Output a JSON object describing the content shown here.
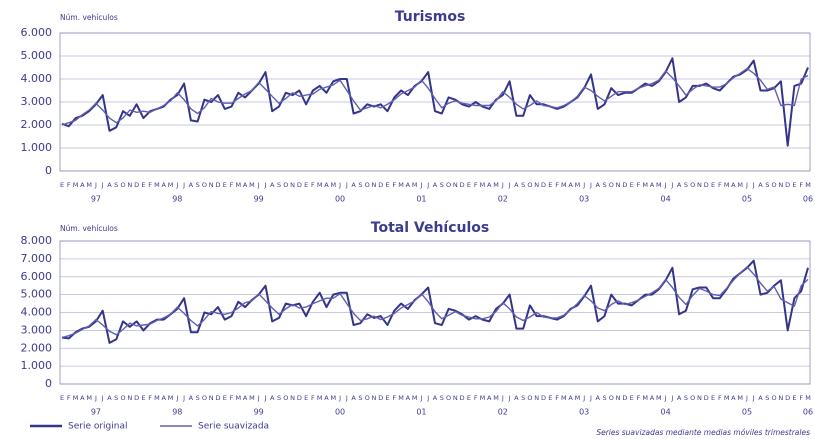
{
  "chart_data": [
    {
      "type": "line",
      "title": "Turismos",
      "y_label": "Núm. vehículos",
      "categories": [
        "E",
        "F",
        "M",
        "A",
        "M",
        "J",
        "J",
        "A",
        "S",
        "O",
        "N",
        "D",
        "E",
        "F",
        "M",
        "A",
        "M",
        "J",
        "J",
        "A",
        "S",
        "O",
        "N",
        "D",
        "E",
        "F",
        "M",
        "A",
        "M",
        "J",
        "J",
        "A",
        "S",
        "O",
        "N",
        "D",
        "E",
        "F",
        "M",
        "A",
        "M",
        "J",
        "J",
        "A",
        "S",
        "O",
        "N",
        "D",
        "E",
        "F",
        "M",
        "A",
        "M",
        "J",
        "J",
        "A",
        "S",
        "O",
        "N",
        "D",
        "E",
        "F",
        "M",
        "A",
        "M",
        "J",
        "J",
        "A",
        "S",
        "O",
        "N",
        "D",
        "E",
        "F",
        "M",
        "A",
        "M",
        "J",
        "J",
        "A",
        "S",
        "O",
        "N",
        "D",
        "E",
        "F",
        "M",
        "A",
        "M",
        "J",
        "J",
        "A",
        "S",
        "O",
        "N",
        "D",
        "E",
        "F",
        "M",
        "A",
        "M",
        "J",
        "J",
        "A",
        "S",
        "O",
        "N",
        "D",
        "E",
        "F",
        "M"
      ],
      "years": [
        "97",
        "98",
        "99",
        "00",
        "01",
        "02",
        "03",
        "04",
        "05",
        "06"
      ],
      "ylim": [
        0,
        6000
      ],
      "yticks": [
        0,
        {
          "value": 1000,
          "label": "1.000"
        },
        {
          "value": 2000,
          "label": "2.000"
        },
        {
          "value": 3000,
          "label": "3.000"
        },
        {
          "value": 4000,
          "label": "4.000"
        },
        {
          "value": 5000,
          "label": "5.000"
        },
        {
          "value": 6000,
          "label": "6.000"
        }
      ],
      "grid": true,
      "series": [
        {
          "name": "Serie original",
          "color": "#34348a",
          "values": [
            2050,
            1950,
            2300,
            2400,
            2600,
            2900,
            3300,
            1750,
            1900,
            2600,
            2400,
            2900,
            2300,
            2600,
            2700,
            2800,
            3100,
            3300,
            3800,
            2200,
            2150,
            3100,
            3000,
            3300,
            2700,
            2800,
            3400,
            3200,
            3500,
            3800,
            4300,
            2600,
            2800,
            3400,
            3300,
            3500,
            2900,
            3500,
            3700,
            3400,
            3900,
            4000,
            4000,
            2500,
            2600,
            2900,
            2800,
            2900,
            2600,
            3200,
            3500,
            3300,
            3700,
            3900,
            4300,
            2600,
            2500,
            3200,
            3100,
            2900,
            2800,
            3000,
            2800,
            2700,
            3100,
            3300,
            3900,
            2400,
            2400,
            3300,
            2900,
            2900,
            2800,
            2700,
            2800,
            3000,
            3200,
            3600,
            4200,
            2700,
            2900,
            3600,
            3300,
            3400,
            3400,
            3600,
            3800,
            3700,
            3900,
            4300,
            4900,
            3000,
            3200,
            3700,
            3700,
            3800,
            3600,
            3500,
            3800,
            4100,
            4200,
            4400,
            4800,
            3500,
            3500,
            3600,
            3900,
            1100,
            3700,
            3800,
            4500
          ]
        },
        {
          "name": "Serie suavizada",
          "color": "#6060b0",
          "values": [
            2000,
            2100,
            2200,
            2450,
            2650,
            2950,
            2650,
            2300,
            2100,
            2300,
            2650,
            2550,
            2600,
            2550,
            2700,
            2850,
            3050,
            3400,
            3100,
            2700,
            2500,
            2750,
            3150,
            3000,
            2950,
            2950,
            3150,
            3350,
            3500,
            3850,
            3550,
            3250,
            2950,
            3150,
            3400,
            3250,
            3300,
            3350,
            3550,
            3650,
            3750,
            3950,
            3500,
            3050,
            2650,
            2750,
            2850,
            2750,
            2900,
            3100,
            3350,
            3500,
            3650,
            3950,
            3600,
            3150,
            2750,
            2950,
            3050,
            2950,
            2900,
            2850,
            2850,
            2850,
            3050,
            3450,
            3200,
            2900,
            2700,
            2850,
            3050,
            2850,
            2800,
            2750,
            2850,
            3000,
            3250,
            3650,
            3500,
            3250,
            3050,
            3250,
            3450,
            3450,
            3450,
            3600,
            3700,
            3800,
            3950,
            4350,
            4050,
            3700,
            3300,
            3550,
            3750,
            3700,
            3650,
            3650,
            3800,
            4050,
            4250,
            4450,
            4250,
            3950,
            3550,
            3650,
            2850,
            2900,
            2850,
            4000,
            4150
          ]
        }
      ]
    },
    {
      "type": "line",
      "title": "Total Vehículos",
      "y_label": "Núm. vehículos",
      "categories": [
        "E",
        "F",
        "M",
        "A",
        "M",
        "J",
        "J",
        "A",
        "S",
        "O",
        "N",
        "D",
        "E",
        "F",
        "M",
        "A",
        "M",
        "J",
        "J",
        "A",
        "S",
        "O",
        "N",
        "D",
        "E",
        "F",
        "M",
        "A",
        "M",
        "J",
        "J",
        "A",
        "S",
        "O",
        "N",
        "D",
        "E",
        "F",
        "M",
        "A",
        "M",
        "J",
        "J",
        "A",
        "S",
        "O",
        "N",
        "D",
        "E",
        "F",
        "M",
        "A",
        "M",
        "J",
        "J",
        "A",
        "S",
        "O",
        "N",
        "D",
        "E",
        "F",
        "M",
        "A",
        "M",
        "J",
        "J",
        "A",
        "S",
        "O",
        "N",
        "D",
        "E",
        "F",
        "M",
        "A",
        "M",
        "J",
        "J",
        "A",
        "S",
        "O",
        "N",
        "D",
        "E",
        "F",
        "M",
        "A",
        "M",
        "J",
        "J",
        "A",
        "S",
        "O",
        "N",
        "D",
        "E",
        "F",
        "M",
        "A",
        "M",
        "J",
        "J",
        "A",
        "S",
        "O",
        "N",
        "D",
        "E",
        "F",
        "M"
      ],
      "years": [
        "97",
        "98",
        "99",
        "00",
        "01",
        "02",
        "03",
        "04",
        "05",
        "06"
      ],
      "ylim": [
        0,
        8000
      ],
      "yticks": [
        0,
        {
          "value": 1000,
          "label": "1.000"
        },
        {
          "value": 2000,
          "label": "2.000"
        },
        {
          "value": 3000,
          "label": "3.000"
        },
        {
          "value": 4000,
          "label": "4.000"
        },
        {
          "value": 5000,
          "label": "5.000"
        },
        {
          "value": 6000,
          "label": "6.000"
        },
        {
          "value": 7000,
          "label": "7.000"
        },
        {
          "value": 8000,
          "label": "8.000"
        }
      ],
      "grid": true,
      "note": "Series suavizadas mediante medias móviles trimestrales",
      "series": [
        {
          "name": "Serie original",
          "color": "#34348a",
          "values": [
            2600,
            2550,
            2900,
            3100,
            3200,
            3500,
            4100,
            2300,
            2500,
            3500,
            3200,
            3500,
            3000,
            3400,
            3600,
            3600,
            3900,
            4200,
            4800,
            2900,
            2900,
            4000,
            3900,
            4300,
            3600,
            3800,
            4600,
            4300,
            4700,
            5000,
            5500,
            3500,
            3700,
            4500,
            4400,
            4500,
            3800,
            4600,
            5100,
            4300,
            5000,
            5100,
            5100,
            3300,
            3400,
            3900,
            3700,
            3800,
            3300,
            4100,
            4500,
            4200,
            4700,
            5000,
            5400,
            3400,
            3300,
            4200,
            4100,
            3900,
            3600,
            3800,
            3600,
            3500,
            4200,
            4500,
            5000,
            3100,
            3100,
            4400,
            3800,
            3800,
            3700,
            3600,
            3800,
            4200,
            4400,
            4900,
            5500,
            3500,
            3800,
            5000,
            4500,
            4500,
            4400,
            4700,
            5000,
            5000,
            5300,
            5800,
            6500,
            3900,
            4100,
            5300,
            5400,
            5400,
            4800,
            4800,
            5300,
            5900,
            6200,
            6500,
            6900,
            5000,
            5100,
            5500,
            5800,
            3000,
            4800,
            5200,
            6500
          ]
        },
        {
          "name": "Serie suavizada",
          "color": "#6060b0",
          "values": [
            2600,
            2700,
            2850,
            3050,
            3250,
            3600,
            3300,
            2950,
            2750,
            3050,
            3400,
            3250,
            3300,
            3350,
            3550,
            3700,
            3900,
            4300,
            3950,
            3550,
            3250,
            3600,
            4050,
            3950,
            3900,
            4000,
            4250,
            4550,
            4650,
            5050,
            4650,
            4250,
            3900,
            4200,
            4450,
            4250,
            4300,
            4500,
            4650,
            4800,
            4800,
            5050,
            4500,
            3950,
            3550,
            3650,
            3800,
            3600,
            3750,
            3950,
            4250,
            4450,
            4650,
            5050,
            4600,
            4050,
            3650,
            3850,
            4050,
            3850,
            3750,
            3650,
            3650,
            3750,
            4050,
            4550,
            4200,
            3750,
            3550,
            3750,
            4000,
            3750,
            3700,
            3700,
            3850,
            4150,
            4500,
            4950,
            4650,
            4250,
            4100,
            4450,
            4650,
            4450,
            4550,
            4700,
            4900,
            5100,
            5350,
            5850,
            5400,
            4850,
            4450,
            4950,
            5350,
            5200,
            5000,
            4950,
            5350,
            5800,
            6200,
            6550,
            6150,
            5650,
            5200,
            5450,
            4750,
            4550,
            4350,
            5500,
            5850
          ]
        }
      ]
    }
  ]
}
